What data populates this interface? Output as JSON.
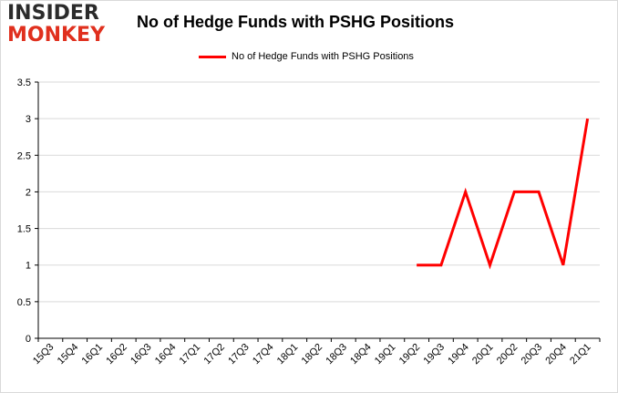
{
  "logo": {
    "line1": "INSIDER",
    "line2": "MONKEY"
  },
  "colors": {
    "series": "#ff0000",
    "grid": "#d9d9d9",
    "axis": "#000000"
  },
  "chart_data": {
    "type": "line",
    "title": "No of Hedge Funds with PSHG Positions",
    "xlabel": "",
    "ylabel": "",
    "ylim": [
      0,
      3.5
    ],
    "yticks": [
      "0",
      "0.5",
      "1",
      "1.5",
      "2",
      "2.5",
      "3",
      "3.5"
    ],
    "grid": "horizontal",
    "legend": "top-center",
    "categories": [
      "15Q3",
      "15Q4",
      "16Q1",
      "16Q2",
      "16Q3",
      "16Q4",
      "17Q1",
      "17Q2",
      "17Q3",
      "17Q4",
      "18Q1",
      "18Q2",
      "18Q3",
      "18Q4",
      "19Q1",
      "19Q2",
      "19Q3",
      "19Q4",
      "20Q1",
      "20Q2",
      "20Q3",
      "20Q4",
      "21Q1"
    ],
    "series": [
      {
        "name": "No of Hedge Funds with PSHG Positions",
        "values": [
          null,
          null,
          null,
          null,
          null,
          null,
          null,
          null,
          null,
          null,
          null,
          null,
          null,
          null,
          null,
          1,
          1,
          2,
          1,
          2,
          2,
          1,
          3
        ]
      }
    ]
  }
}
